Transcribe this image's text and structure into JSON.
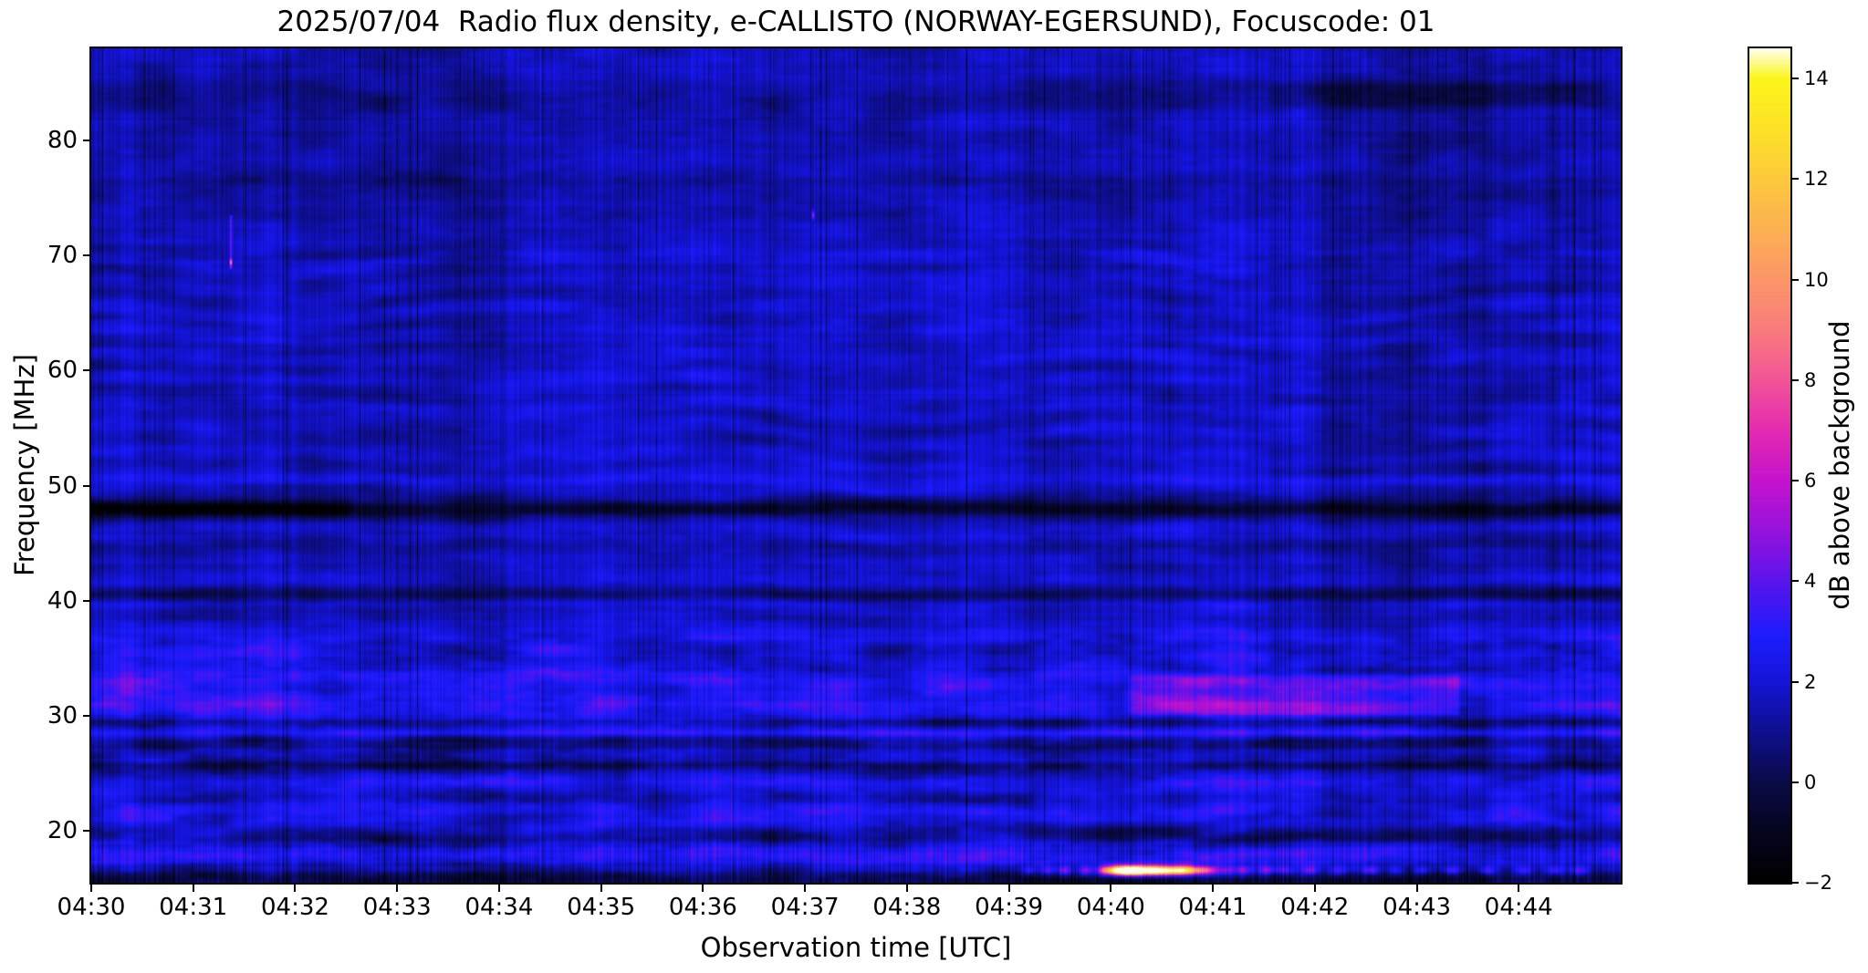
{
  "figure": {
    "background_color": "#ffffff",
    "text_color": "#000000"
  },
  "chart_data": {
    "type": "heatmap",
    "title": "2025/07/04  Radio flux density, e-CALLISTO (NORWAY-EGERSUND), Focuscode: 01",
    "xlabel": "Observation time [UTC]",
    "ylabel": "Frequency [MHz]",
    "x_axis": {
      "start_label": "04:30",
      "end_label": "04:45",
      "duration_min": 15,
      "tick_interval_min": 1,
      "tick_labels": [
        "04:30",
        "04:31",
        "04:32",
        "04:33",
        "04:34",
        "04:35",
        "04:36",
        "04:37",
        "04:38",
        "04:39",
        "04:40",
        "04:41",
        "04:42",
        "04:43",
        "04:44"
      ]
    },
    "y_axis": {
      "min_mhz": 15.5,
      "max_mhz": 88.0,
      "tick_values": [
        20,
        30,
        40,
        50,
        60,
        70,
        80
      ],
      "tick_labels": [
        "20",
        "30",
        "40",
        "50",
        "60",
        "70",
        "80"
      ]
    },
    "colorbar": {
      "label": "dB above background",
      "vmin": -2,
      "vmax": 14.6,
      "tick_values": [
        -2,
        0,
        2,
        4,
        6,
        8,
        10,
        12,
        14
      ],
      "tick_labels": [
        "−2",
        "0",
        "2",
        "4",
        "6",
        "8",
        "10",
        "12",
        "14"
      ],
      "stops": [
        [
          -2.0,
          "#000000"
        ],
        [
          -1.0,
          "#05051e"
        ],
        [
          0.0,
          "#0a0a48"
        ],
        [
          1.0,
          "#0f0f8e"
        ],
        [
          2.0,
          "#1414d6"
        ],
        [
          2.9,
          "#1c1cfe"
        ],
        [
          4.0,
          "#5a14ec"
        ],
        [
          5.0,
          "#9612dc"
        ],
        [
          6.0,
          "#c513cd"
        ],
        [
          7.0,
          "#e32bb1"
        ],
        [
          8.0,
          "#f25497"
        ],
        [
          9.0,
          "#f97b7b"
        ],
        [
          10.0,
          "#fb9668"
        ],
        [
          11.0,
          "#fcb052"
        ],
        [
          12.0,
          "#fdc93c"
        ],
        [
          13.0,
          "#fde128"
        ],
        [
          14.0,
          "#fbf519"
        ],
        [
          14.6,
          "#fffff0"
        ]
      ]
    },
    "description": "Quiet-Sun blue background with wavy ionospheric interference fringes (17-71 MHz), dark RFI absorption band at 48 MHz (strongest before 04:32.5), dark bands near 40.6/29.4/25.6 MHz, bright bands near 33/30.5/28.5/21.6/17.8 MHz, enhanced emission rectangle 04:40.1-04:43.4 at 29.8-33.8 MHz, darker vertical-streak column 04:42.0-04:43.8, faint vertical point event at 04:31.4 (69-73.5 MHz), and an intense narrowband burst streak at ~16.5 MHz from 04:39.6 to 04:41.0 reaching ~14 dB with a weaker blue dashed continuation until 04:44.6.",
    "render_model": {
      "seed": 20250704,
      "base_db": 1.75,
      "above_fade": {
        "f_start": 71.5,
        "depth": -0.28,
        "ramp_mhz": 3
      },
      "bottom_fade": {
        "f_start": 16.6,
        "depth": -0.45,
        "ramp_mhz": 0.8
      },
      "noise": {
        "col_hi": 0.9,
        "col_hi_lowband_gain": 1.7,
        "col_lowband_f": 19,
        "col_slow": 0.8,
        "row": 0.5,
        "blotch_low": 0.85,
        "blotch_high": 0.48,
        "blotch_split_f": 37,
        "spike_dark_prob": 0.055,
        "spike_bright_prob": 0.015
      },
      "fringes": {
        "f_min": 17.0,
        "f_max": 71.5,
        "wavelength_mhz": 2.15,
        "amplitude_db": 0.62,
        "waviness_rad": 7.0
      },
      "bands": [
        [
          48.0,
          0.55,
          -2.6
        ],
        [
          40.6,
          0.45,
          -1.2
        ],
        [
          44.3,
          0.5,
          -0.55
        ],
        [
          84.0,
          0.9,
          -0.5
        ],
        [
          76.5,
          0.6,
          -0.4
        ],
        [
          36.8,
          0.5,
          0.8
        ],
        [
          33.0,
          1.3,
          0.95
        ],
        [
          30.5,
          0.7,
          0.8
        ],
        [
          29.4,
          0.3,
          -1.3
        ],
        [
          28.5,
          0.22,
          1.2
        ],
        [
          27.5,
          0.45,
          -0.9
        ],
        [
          25.6,
          0.4,
          -1.4
        ],
        [
          24.0,
          0.7,
          0.7
        ],
        [
          22.8,
          0.3,
          -0.5
        ],
        [
          21.6,
          0.7,
          0.85
        ],
        [
          19.6,
          0.5,
          -0.8
        ],
        [
          17.8,
          0.65,
          1.3
        ],
        [
          16.9,
          0.3,
          -0.6
        ],
        [
          15.9,
          0.45,
          -1.6
        ],
        [
          50.5,
          0.35,
          0.5
        ]
      ],
      "band48_left_boost": {
        "delta": -1.3,
        "t_end_min": 2.6,
        "edge_min": 0.12,
        "sigma_mhz": 0.6
      },
      "rects": [
        {
          "t0": 10.15,
          "t1": 13.45,
          "f0": 29.8,
          "f1": 33.8,
          "delta": 1.5,
          "soft_t": 0.06,
          "soft_f": 0.5
        },
        {
          "t0": 0.0,
          "t1": 2.35,
          "f0": 28.5,
          "f1": 37.0,
          "delta": 0.7,
          "soft_t": 0.3,
          "soft_f": 1.5
        },
        {
          "t0": 11.4,
          "t1": 15.0,
          "f0": 82.5,
          "f1": 85.3,
          "delta": -0.75,
          "soft_t": 0.3,
          "soft_f": 0.8
        }
      ],
      "dark_column": {
        "t0": 12.0,
        "t1": 13.78,
        "delta": -0.5,
        "soft_t": 0.1
      },
      "burst": {
        "f_mhz": 16.55,
        "sigma_f": 0.3,
        "sigma_t": 0.05,
        "blobs": [
          [
            9.2,
            2.5
          ],
          [
            9.38,
            2.8
          ],
          [
            9.55,
            3.5
          ],
          [
            9.75,
            4.0
          ],
          [
            9.93,
            6.5
          ],
          [
            10.02,
            9.0
          ],
          [
            10.1,
            12.0
          ],
          [
            10.18,
            14.0
          ],
          [
            10.26,
            13.0
          ],
          [
            10.34,
            11.0
          ],
          [
            10.42,
            12.5
          ],
          [
            10.5,
            9.5
          ],
          [
            10.58,
            11.0
          ],
          [
            10.68,
            12.0
          ],
          [
            10.78,
            9.0
          ],
          [
            10.88,
            6.5
          ],
          [
            10.98,
            5.0
          ]
        ]
      },
      "trail": {
        "f_mhz": 16.55,
        "sigma_f": 0.28,
        "sigma_t": 0.06,
        "blobs": [
          [
            11.12,
            3.0
          ],
          [
            11.3,
            2.6
          ],
          [
            11.52,
            3.2
          ],
          [
            11.72,
            2.4
          ],
          [
            11.95,
            3.0
          ],
          [
            12.22,
            2.6
          ],
          [
            12.55,
            3.4
          ],
          [
            12.8,
            2.4
          ],
          [
            13.05,
            3.0
          ],
          [
            13.35,
            2.6
          ],
          [
            13.7,
            3.2
          ],
          [
            14.05,
            2.5
          ],
          [
            14.35,
            3.0
          ],
          [
            14.6,
            2.8
          ]
        ]
      },
      "vline_event": {
        "t_min": 1.37,
        "sigma_t": 0.008,
        "f0": 68.8,
        "f1": 73.5,
        "delta": 3.0,
        "hotspot_f": 69.4,
        "hotspot_gain": 2.0
      },
      "speck_event": {
        "t_min": 7.08,
        "sigma_t": 0.01,
        "f_mhz": 73.5,
        "sigma_f": 0.25,
        "delta": 4.5
      }
    }
  }
}
